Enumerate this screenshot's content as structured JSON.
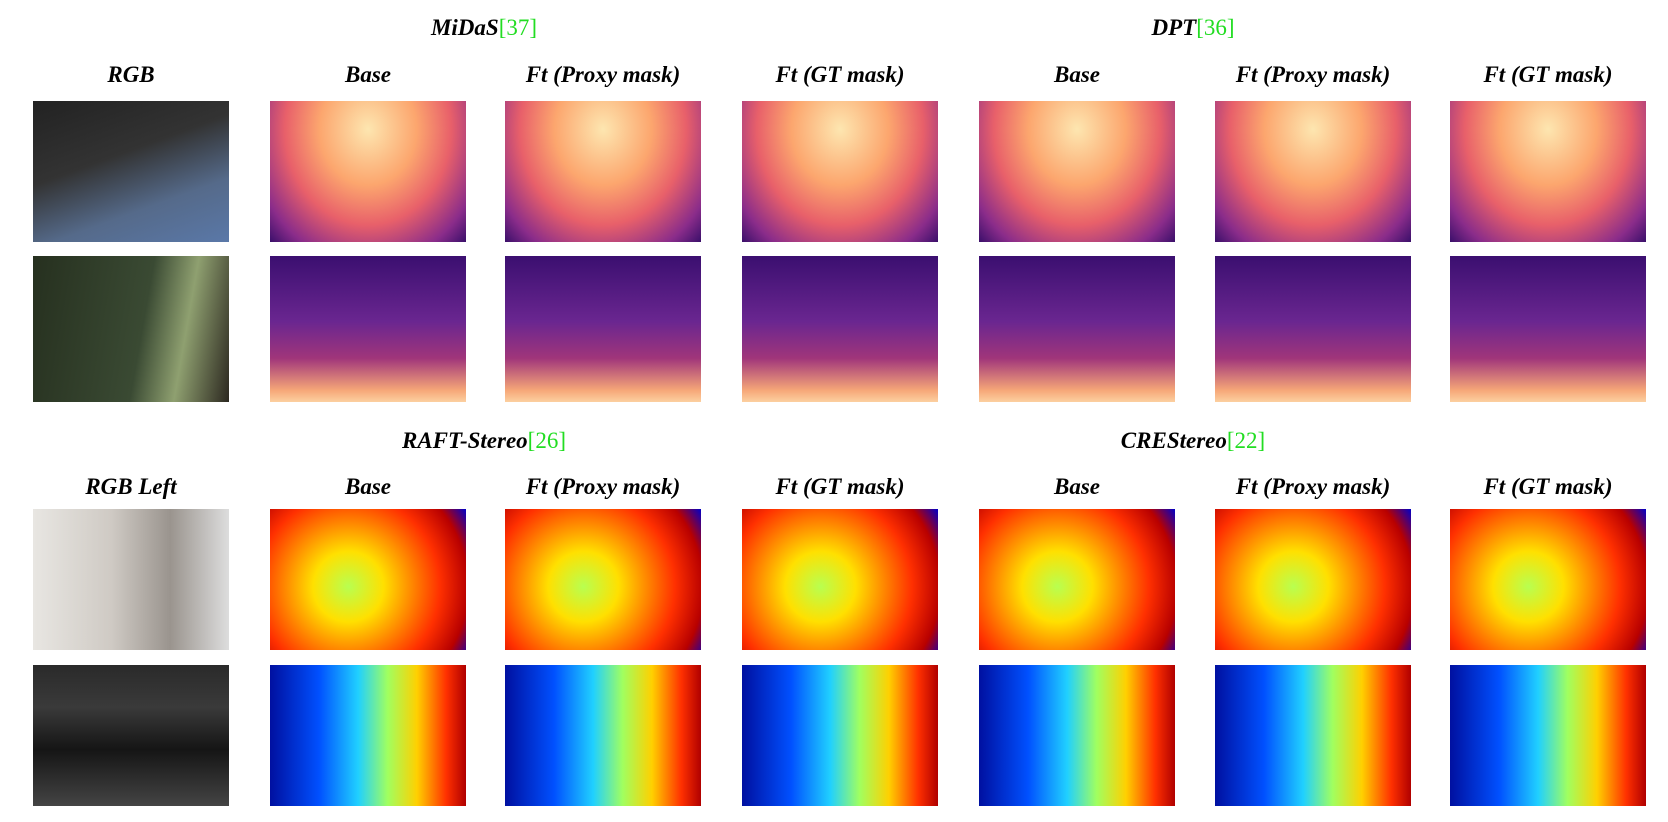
{
  "sections": [
    {
      "groups": [
        {
          "name": "MiDaS",
          "ref": "[37]"
        },
        {
          "name": "DPT",
          "ref": "[36]"
        }
      ],
      "columns": [
        "RGB",
        "Base",
        "Ft (Proxy mask)",
        "Ft (GT mask)",
        "Base",
        "Ft (Proxy mask)",
        "Ft (GT mask)"
      ]
    },
    {
      "groups": [
        {
          "name": "RAFT-Stereo",
          "ref": "[26]"
        },
        {
          "name": "CREStereo",
          "ref": "[22]"
        }
      ],
      "columns": [
        "RGB Left",
        "Base",
        "Ft (Proxy mask)",
        "Ft (GT mask)",
        "Base",
        "Ft (Proxy mask)",
        "Ft (GT mask)"
      ]
    }
  ]
}
